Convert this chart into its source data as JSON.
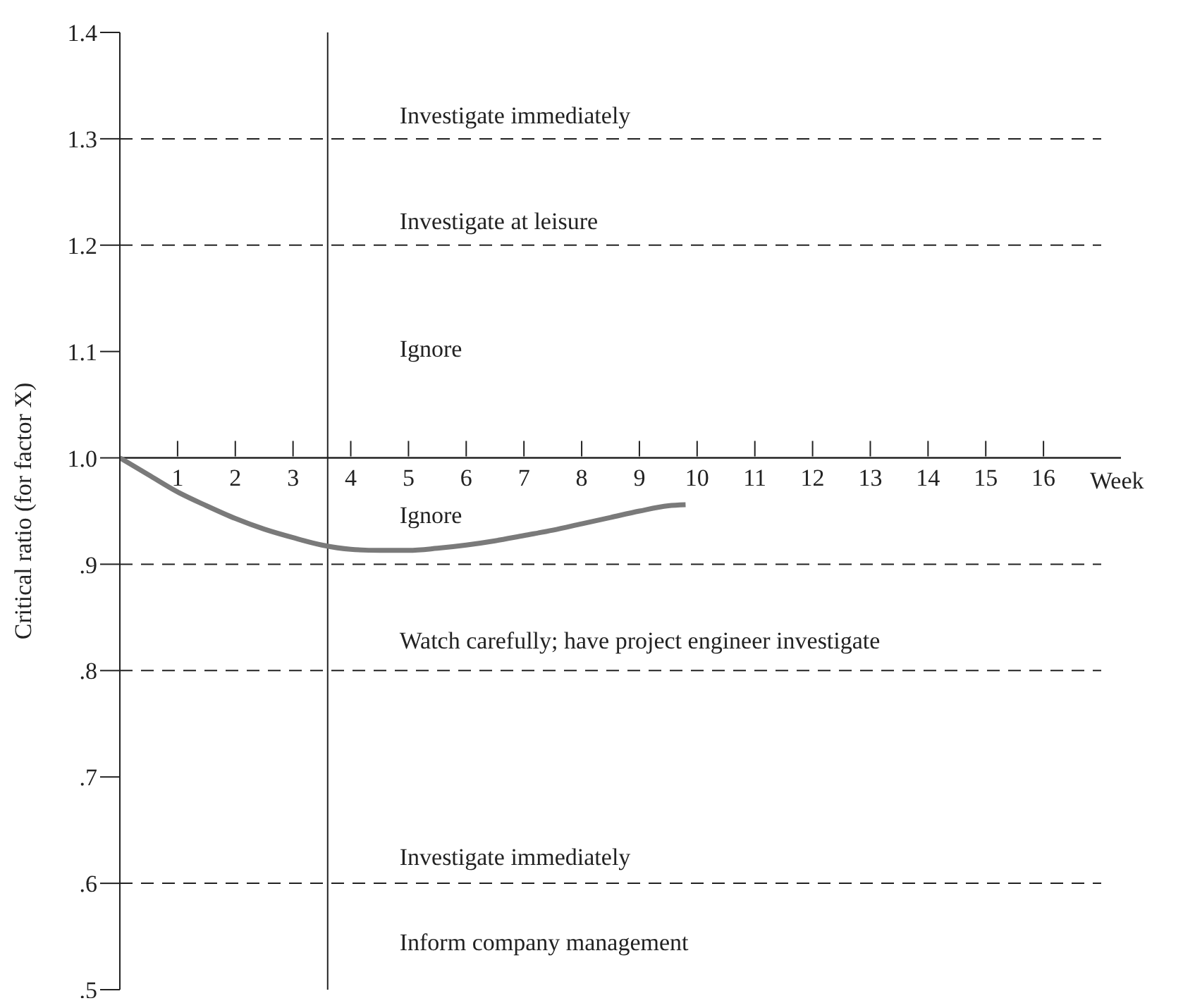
{
  "chart_data": {
    "type": "line",
    "xlabel": "Week",
    "ylabel": "Critical ratio (for factor X)",
    "xlim": [
      0,
      17
    ],
    "xticks": [
      1,
      2,
      3,
      4,
      5,
      6,
      7,
      8,
      9,
      10,
      11,
      12,
      13,
      14,
      15,
      16
    ],
    "ylim": [
      0.5,
      1.4
    ],
    "yticks": [
      {
        "value": 0.5,
        "label": ".5"
      },
      {
        "value": 0.6,
        "label": ".6"
      },
      {
        "value": 0.7,
        "label": ".7"
      },
      {
        "value": 0.8,
        "label": ".8"
      },
      {
        "value": 0.9,
        "label": ".9"
      },
      {
        "value": 1.0,
        "label": "1.0"
      },
      {
        "value": 1.1,
        "label": "1.1"
      },
      {
        "value": 1.2,
        "label": "1.2"
      },
      {
        "value": 1.3,
        "label": "1.3"
      },
      {
        "value": 1.4,
        "label": "1.4"
      }
    ],
    "grid": false,
    "legend": false,
    "marker": "none",
    "line_style": "solid",
    "series": [
      {
        "color": "#7a7a7a",
        "x": [
          0,
          0.5,
          1,
          1.5,
          2,
          2.5,
          3,
          3.5,
          4,
          4.5,
          5,
          5.5,
          6,
          6.5,
          7,
          7.5,
          8,
          8.5,
          9,
          9.5,
          9.8
        ],
        "values": [
          1.0,
          0.984,
          0.968,
          0.955,
          0.943,
          0.933,
          0.925,
          0.918,
          0.914,
          0.913,
          0.913,
          0.915,
          0.918,
          0.922,
          0.927,
          0.932,
          0.938,
          0.944,
          0.95,
          0.955,
          0.956
        ]
      }
    ],
    "ref_lines": [
      {
        "axis": "x",
        "value": 3.6,
        "line_style": "solid",
        "color": "#222222"
      },
      {
        "axis": "y",
        "value": 1.3,
        "line_style": "dashed",
        "color": "#222222"
      },
      {
        "axis": "y",
        "value": 1.2,
        "line_style": "dashed",
        "color": "#222222"
      },
      {
        "axis": "y",
        "value": 0.9,
        "line_style": "dashed",
        "color": "#222222"
      },
      {
        "axis": "y",
        "value": 0.8,
        "line_style": "dashed",
        "color": "#222222"
      },
      {
        "axis": "y",
        "value": 0.6,
        "line_style": "dashed",
        "color": "#222222"
      }
    ],
    "annotations": [
      "Investigate immediately",
      "Investigate at leisure",
      "Ignore",
      "Ignore",
      "Watch carefully; have project engineer investigate",
      "Investigate immediately",
      "Inform company management"
    ]
  }
}
